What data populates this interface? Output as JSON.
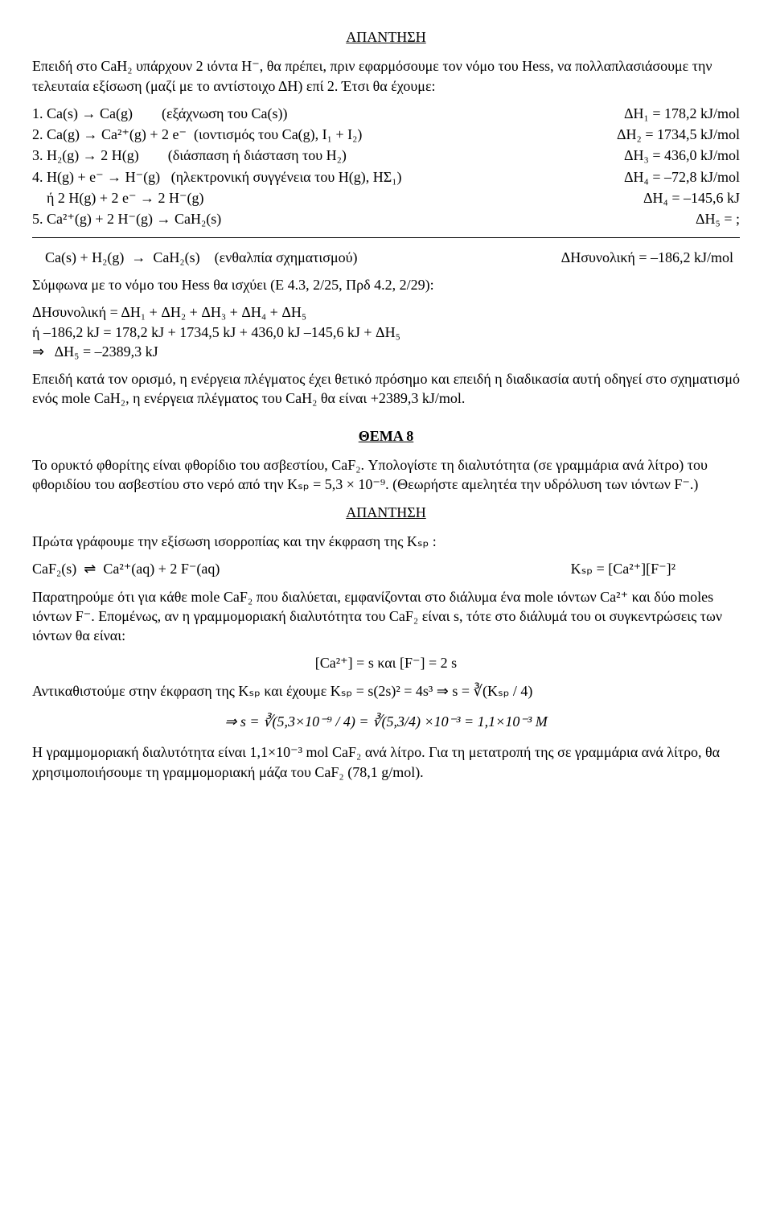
{
  "answer1_heading": "ΑΠΑΝΤΗΣΗ",
  "para_intro": "Επειδή στο CaH₂ υπάρχουν 2 ιόντα H⁻, θα πρέπει, πριν εφαρμόσουμε τον νόμο του Hess, να πολλαπλασιάσουμε την τελευταία εξίσωση (μαζί με το αντίστοιχο ΔH) επί 2. Έτσι θα έχουμε:",
  "rxns": [
    {
      "left": "1. Ca(s) → Ca(g)        (εξάχνωση του Ca(s))",
      "right": "ΔH₁ = 178,2 kJ/mol"
    },
    {
      "left": "2. Ca(g) → Ca²⁺(g) + 2 e⁻  (ιοντισμός του Ca(g), I₁ + I₂)",
      "right": "ΔH₂ = 1734,5 kJ/mol"
    },
    {
      "left": "3. H₂(g) → 2 H(g)        (διάσπαση ή διάσταση του H₂)",
      "right": "ΔH₃ = 436,0 kJ/mol"
    },
    {
      "left": "4. H(g) + e⁻ → H⁻(g)   (ηλεκτρονική συγγένεια του H(g), ΗΣ₁)",
      "right": "ΔH₄ = –72,8 kJ/mol"
    },
    {
      "left": "    ή 2 H(g) + 2 e⁻ → 2 H⁻(g)",
      "right": "ΔH₄ = –145,6 kJ"
    },
    {
      "left": "5. Ca²⁺(g) + 2 H⁻(g) → CaH₂(s)",
      "right": "ΔH₅ = ;"
    }
  ],
  "sum_line_left": "Ca(s) + H₂(g)  →  CaH₂(s)    (ενθαλπία σχηματισμού)",
  "sum_line_right": "ΔHσυνολική = –186,2 kJ/mol",
  "hess_intro": "Σύμφωνα με το νόμο του Hess θα ισχύει (Ε 4.3, 2/25, Πρδ 4.2, 2/29):",
  "hess_eqns": [
    "ΔHσυνολική = ΔH₁ + ΔH₂ + ΔH₃ + ΔH₄ + ΔH₅",
    "ή –186,2 kJ = 178,2 kJ + 1734,5 kJ + 436,0 kJ –145,6 kJ + ΔH₅",
    "⇒   ΔH₅ = –2389,3 kJ"
  ],
  "concl1": "Επειδή κατά τον ορισμό, η ενέργεια πλέγματος έχει θετικό πρόσημο και επειδή η διαδικασία αυτή οδηγεί στο σχηματισμό ενός mole CaH₂, η ενέργεια πλέγματος του CaH₂ θα είναι +2389,3 kJ/mol.",
  "theme8_heading": "ΘΕΜΑ 8",
  "theme8_text": "Το ορυκτό φθορίτης είναι φθορίδιο του ασβεστίου, CaF₂. Υπολογίστε τη διαλυτότητα (σε γραμμάρια ανά λίτρο) του φθοριδίου του ασβεστίου στο νερό από την Kₛₚ = 5,3 × 10⁻⁹. (Θεωρήστε αμελητέα την υδρόλυση των ιόντων F⁻.)",
  "answer2_heading": "ΑΠΑΝΤΗΣΗ",
  "eq_intro": "Πρώτα γράφουμε την εξίσωση ισορροπίας και την έκφραση της Kₛₚ :",
  "eq_line_left": "CaF₂(s)  ⇌  Ca²⁺(aq) + 2 F⁻(aq)",
  "eq_line_right": "Kₛₚ = [Ca²⁺][F⁻]²",
  "observe": "Παρατηρούμε ότι για κάθε mole CaF₂ που διαλύεται, εμφανίζονται στο διάλυμα ένα mole ιόντων Ca²⁺ και δύο moles ιόντων F⁻. Επομένως, αν η γραμμομοριακή διαλυτότητα του CaF₂ είναι s, τότε στο διάλυμά του οι συγκεντρώσεις των ιόντων θα είναι:",
  "conc_line": "[Ca²⁺] = s     και    [F⁻] = 2 s",
  "subst_line": "Αντικαθιστούμε στην έκφραση της Kₛₚ και έχουμε Kₛₚ = s(2s)² = 4s³  ⇒  s = ∛(Kₛₚ / 4)",
  "final_calc": "⇒    s = ∛(5,3×10⁻⁹ / 4) = ∛(5,3/4) ×10⁻³ = 1,1×10⁻³ M",
  "final_para": "Η γραμμομοριακή διαλυτότητα είναι 1,1×10⁻³ mol CaF₂ ανά λίτρο. Για τη μετατροπή της σε γραμμάρια ανά λίτρο, θα χρησιμοποιήσουμε τη γραμμομοριακή μάζα του CaF₂ (78,1 g/mol)."
}
